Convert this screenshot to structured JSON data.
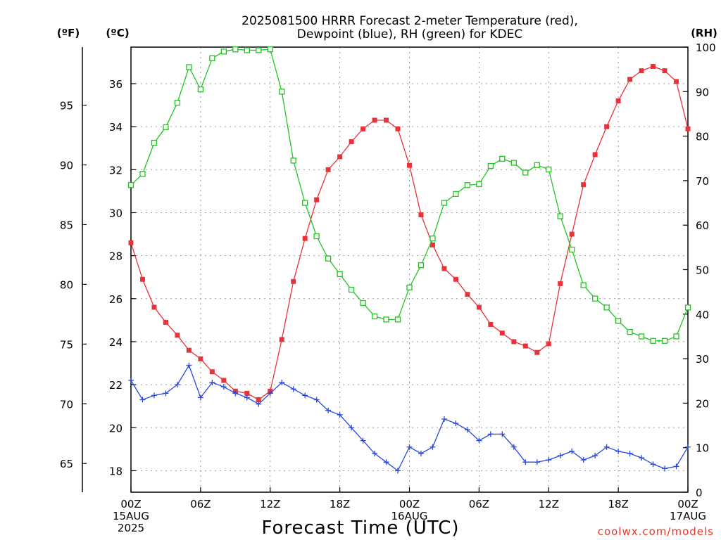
{
  "chart_data": {
    "type": "line",
    "title": [
      "2025081500 HRRR Forecast 2-meter Temperature (red),",
      "Dewpoint (blue), RH (green) for KDEC"
    ],
    "xlabel": "Forecast Time (UTC)",
    "credit": "coolwx.com/models",
    "axis_units": {
      "fahrenheit": "(ºF)",
      "celsius": "(ºC)",
      "rh": "(RH)"
    },
    "x_hours": [
      0,
      1,
      2,
      3,
      4,
      5,
      6,
      7,
      8,
      9,
      10,
      11,
      12,
      13,
      14,
      15,
      16,
      17,
      18,
      19,
      20,
      21,
      22,
      23,
      24,
      25,
      26,
      27,
      28,
      29,
      30,
      31,
      32,
      33,
      34,
      35,
      36,
      37,
      38,
      39,
      40,
      41,
      42,
      43,
      44,
      45,
      46,
      47,
      48
    ],
    "x_ticks": [
      {
        "hour": 0,
        "lines": [
          "00Z",
          "15AUG",
          "2025"
        ]
      },
      {
        "hour": 6,
        "lines": [
          "06Z"
        ]
      },
      {
        "hour": 12,
        "lines": [
          "12Z"
        ]
      },
      {
        "hour": 18,
        "lines": [
          "18Z"
        ]
      },
      {
        "hour": 24,
        "lines": [
          "00Z",
          "16AUG"
        ]
      },
      {
        "hour": 30,
        "lines": [
          "06Z"
        ]
      },
      {
        "hour": 36,
        "lines": [
          "12Z"
        ]
      },
      {
        "hour": 42,
        "lines": [
          "18Z"
        ]
      },
      {
        "hour": 48,
        "lines": [
          "00Z",
          "17AUG"
        ]
      }
    ],
    "xlim": [
      0,
      48
    ],
    "ylim_celsius": [
      17.0,
      37.7
    ],
    "ylim_fahrenheit": [
      62.6,
      99.86
    ],
    "ylim_rh": [
      0,
      100
    ],
    "celsius_ticks": [
      18,
      20,
      22,
      24,
      26,
      28,
      30,
      32,
      34,
      36
    ],
    "fahrenheit_ticks": [
      65,
      70,
      75,
      80,
      85,
      90,
      95
    ],
    "rh_ticks": [
      0,
      10,
      20,
      30,
      40,
      50,
      60,
      70,
      80,
      90,
      100
    ],
    "grid": true,
    "series": [
      {
        "name": "Temperature",
        "color": "#e8333a",
        "marker": "filled-square",
        "axis": "celsius",
        "values": [
          28.6,
          26.9,
          25.6,
          24.9,
          24.3,
          23.6,
          23.2,
          22.6,
          22.2,
          21.7,
          21.6,
          21.3,
          21.7,
          24.1,
          26.8,
          28.8,
          30.6,
          32.0,
          32.6,
          33.3,
          33.9,
          34.3,
          34.3,
          33.9,
          32.2,
          29.9,
          28.5,
          27.4,
          26.9,
          26.2,
          25.6,
          24.8,
          24.4,
          24.0,
          23.8,
          23.5,
          23.9,
          26.7,
          29.0,
          31.3,
          32.7,
          34.0,
          35.2,
          36.2,
          36.6,
          36.8,
          36.6,
          36.1,
          33.9
        ]
      },
      {
        "name": "Dewpoint",
        "color": "#2a48e0",
        "marker": "plus",
        "axis": "celsius",
        "values": [
          22.2,
          21.3,
          21.5,
          21.6,
          22.0,
          22.9,
          21.4,
          22.1,
          21.9,
          21.6,
          21.4,
          21.1,
          21.6,
          22.1,
          21.8,
          21.5,
          21.3,
          20.8,
          20.6,
          20.0,
          19.4,
          18.8,
          18.4,
          18.0,
          19.1,
          18.8,
          19.1,
          20.4,
          20.2,
          19.9,
          19.4,
          19.7,
          19.7,
          19.1,
          18.4,
          18.4,
          18.5,
          18.7,
          18.9,
          18.5,
          18.7,
          19.1,
          18.9,
          18.8,
          18.6,
          18.3,
          18.1,
          18.2,
          19.1
        ]
      },
      {
        "name": "RH",
        "color": "#22c422",
        "marker": "open-square",
        "axis": "rh",
        "values": [
          69,
          71.5,
          78.5,
          82,
          87.5,
          95.5,
          90.5,
          97.5,
          99,
          99.5,
          99.3,
          99.3,
          99.5,
          90,
          74.5,
          65,
          57.5,
          52.5,
          49,
          45.5,
          42.5,
          39.5,
          38.8,
          38.8,
          46,
          51,
          57,
          65,
          67,
          69,
          69.2,
          73.3,
          74.9,
          74,
          71.8,
          73.5,
          72.5,
          62,
          54.5,
          46.5,
          43.5,
          41.5,
          38.5,
          36,
          35,
          34,
          34,
          35,
          41.5
        ]
      }
    ]
  }
}
